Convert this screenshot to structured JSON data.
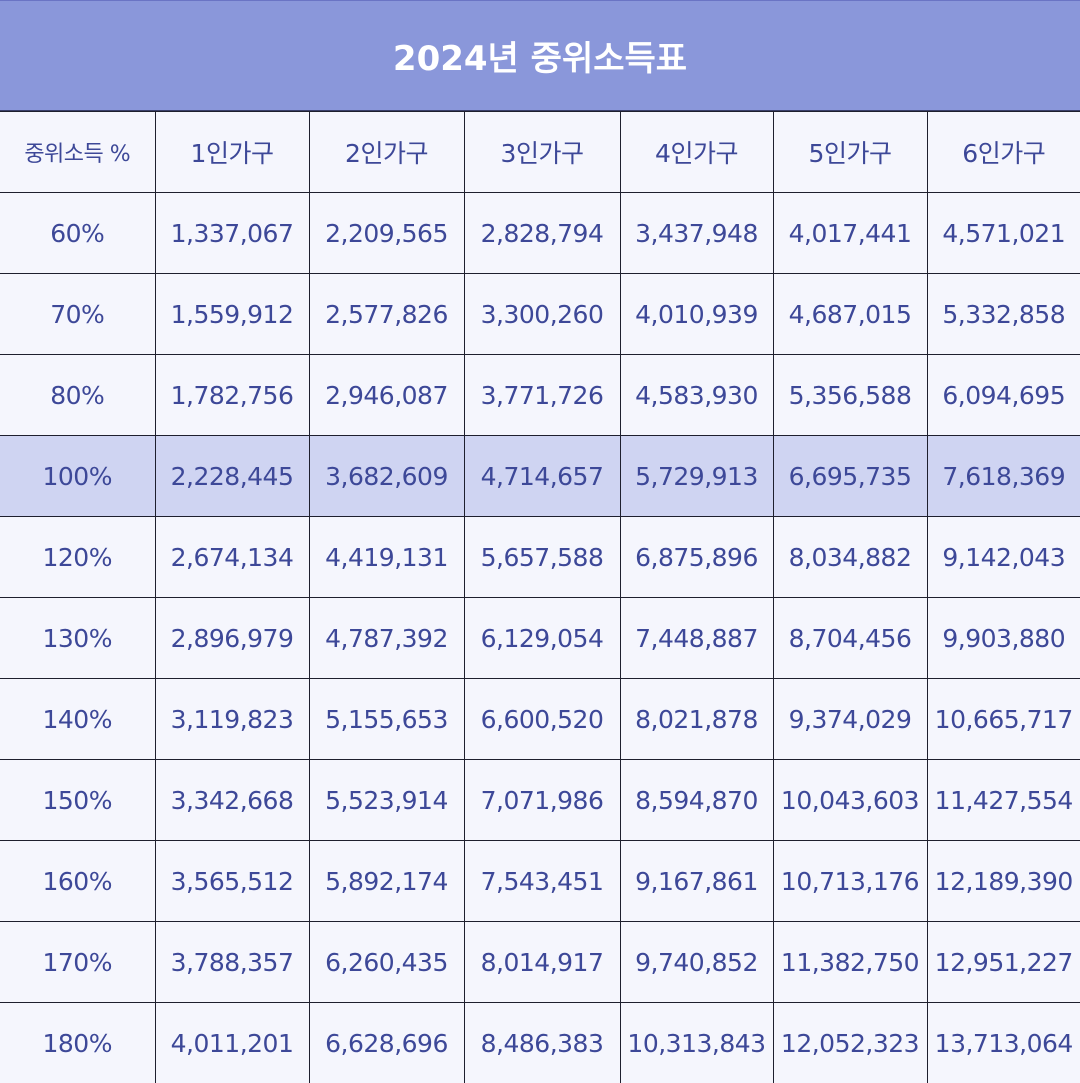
{
  "title": "2024년 중위소득표",
  "colors": {
    "header_bg": "#8a97da",
    "highlight_row_bg": "#cfd4f2",
    "text": "#3d4898",
    "background": "#f5f6fd"
  },
  "table": {
    "headers": [
      "중위소득 %",
      "1인가구",
      "2인가구",
      "3인가구",
      "4인가구",
      "5인가구",
      "6인가구"
    ],
    "highlighted_row": "100%",
    "rows": [
      {
        "pct": "60%",
        "values": [
          "1,337,067",
          "2,209,565",
          "2,828,794",
          "3,437,948",
          "4,017,441",
          "4,571,021"
        ]
      },
      {
        "pct": "70%",
        "values": [
          "1,559,912",
          "2,577,826",
          "3,300,260",
          "4,010,939",
          "4,687,015",
          "5,332,858"
        ]
      },
      {
        "pct": "80%",
        "values": [
          "1,782,756",
          "2,946,087",
          "3,771,726",
          "4,583,930",
          "5,356,588",
          "6,094,695"
        ]
      },
      {
        "pct": "100%",
        "values": [
          "2,228,445",
          "3,682,609",
          "4,714,657",
          "5,729,913",
          "6,695,735",
          "7,618,369"
        ]
      },
      {
        "pct": "120%",
        "values": [
          "2,674,134",
          "4,419,131",
          "5,657,588",
          "6,875,896",
          "8,034,882",
          "9,142,043"
        ]
      },
      {
        "pct": "130%",
        "values": [
          "2,896,979",
          "4,787,392",
          "6,129,054",
          "7,448,887",
          "8,704,456",
          "9,903,880"
        ]
      },
      {
        "pct": "140%",
        "values": [
          "3,119,823",
          "5,155,653",
          "6,600,520",
          "8,021,878",
          "9,374,029",
          "10,665,717"
        ]
      },
      {
        "pct": "150%",
        "values": [
          "3,342,668",
          "5,523,914",
          "7,071,986",
          "8,594,870",
          "10,043,603",
          "11,427,554"
        ]
      },
      {
        "pct": "160%",
        "values": [
          "3,565,512",
          "5,892,174",
          "7,543,451",
          "9,167,861",
          "10,713,176",
          "12,189,390"
        ]
      },
      {
        "pct": "170%",
        "values": [
          "3,788,357",
          "6,260,435",
          "8,014,917",
          "9,740,852",
          "11,382,750",
          "12,951,227"
        ]
      },
      {
        "pct": "180%",
        "values": [
          "4,011,201",
          "6,628,696",
          "8,486,383",
          "10,313,843",
          "12,052,323",
          "13,713,064"
        ]
      }
    ]
  }
}
